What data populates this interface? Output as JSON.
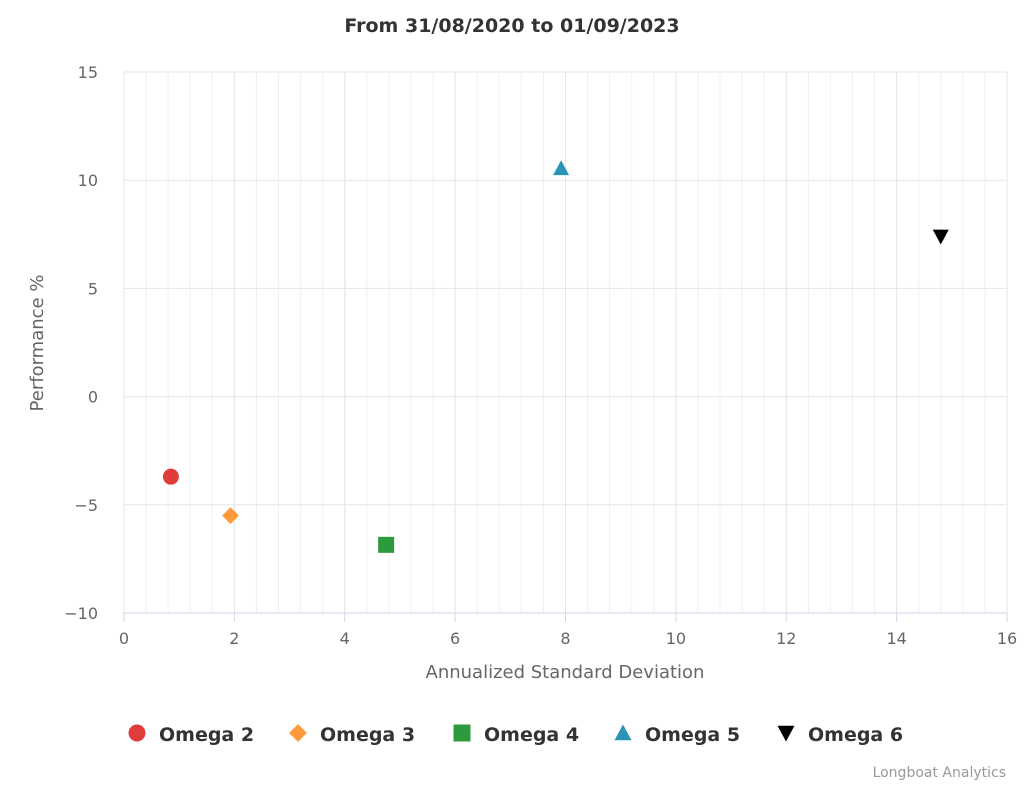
{
  "chart_data": {
    "type": "scatter",
    "title": "From 31/08/2020 to 01/09/2023",
    "xlabel": "Annualized Standard Deviation",
    "ylabel": "Performance %",
    "xlim": [
      0,
      16
    ],
    "ylim": [
      -10,
      15
    ],
    "x_ticks": [
      "0",
      "2",
      "4",
      "6",
      "8",
      "10",
      "12",
      "14",
      "16"
    ],
    "y_ticks": [
      "15",
      "10",
      "5",
      "0",
      "−5",
      "−10"
    ],
    "grid": true,
    "legend_position": "bottom",
    "series": [
      {
        "name": "Omega 2",
        "marker": "circle",
        "color": "#e03c3c",
        "x": 0.85,
        "y": -3.7
      },
      {
        "name": "Omega 3",
        "marker": "diamond",
        "color": "#ff9a3c",
        "x": 1.93,
        "y": -5.5
      },
      {
        "name": "Omega 4",
        "marker": "square",
        "color": "#2e9a3e",
        "x": 4.75,
        "y": -6.85
      },
      {
        "name": "Omega 5",
        "marker": "triangle",
        "color": "#2b95b5",
        "x": 7.92,
        "y": 10.55
      },
      {
        "name": "Omega 6",
        "marker": "triangle-down",
        "color": "#000000",
        "x": 14.8,
        "y": 7.4
      }
    ]
  },
  "credit": "Longboat Analytics"
}
